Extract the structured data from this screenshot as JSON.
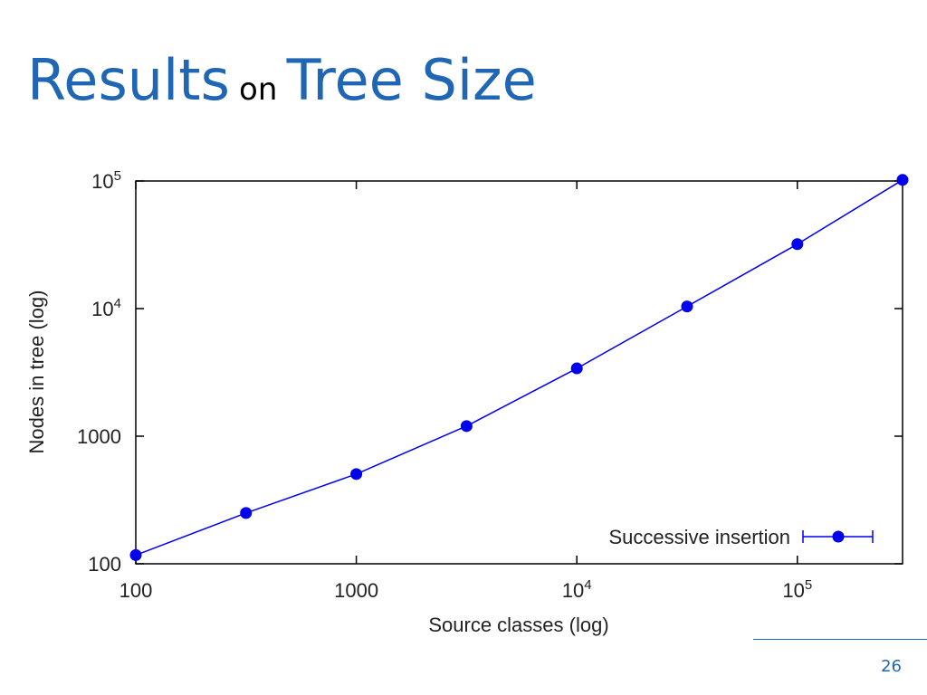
{
  "slide": {
    "title_part1": "Results",
    "title_part2": "on",
    "title_part3": "Tree Size",
    "page_number": "26",
    "accent_color": "#1f66b5"
  },
  "chart_data": {
    "type": "line",
    "title": "",
    "xlabel": "Source classes (log)",
    "ylabel": "Nodes in tree (log)",
    "x_scale": "log",
    "y_scale": "log",
    "xlim": [
      100,
      300000
    ],
    "ylim": [
      100,
      100000
    ],
    "x_ticks": [
      {
        "value": 100,
        "base": "100",
        "exp": ""
      },
      {
        "value": 1000,
        "base": "1000",
        "exp": ""
      },
      {
        "value": 10000,
        "base": "10",
        "exp": "4"
      },
      {
        "value": 100000,
        "base": "10",
        "exp": "5"
      }
    ],
    "y_ticks": [
      {
        "value": 100,
        "base": "100",
        "exp": ""
      },
      {
        "value": 1000,
        "base": "1000",
        "exp": ""
      },
      {
        "value": 10000,
        "base": "10",
        "exp": "4"
      },
      {
        "value": 100000,
        "base": "10",
        "exp": "5"
      }
    ],
    "grid": false,
    "legend_position": "bottom-right",
    "series": [
      {
        "name": "Successive insertion",
        "color": "#0000ee",
        "x": [
          100,
          316,
          1000,
          3162,
          10000,
          31623,
          100000,
          300000
        ],
        "y": [
          117,
          250,
          505,
          1200,
          3400,
          10400,
          32000,
          102000
        ]
      }
    ]
  }
}
